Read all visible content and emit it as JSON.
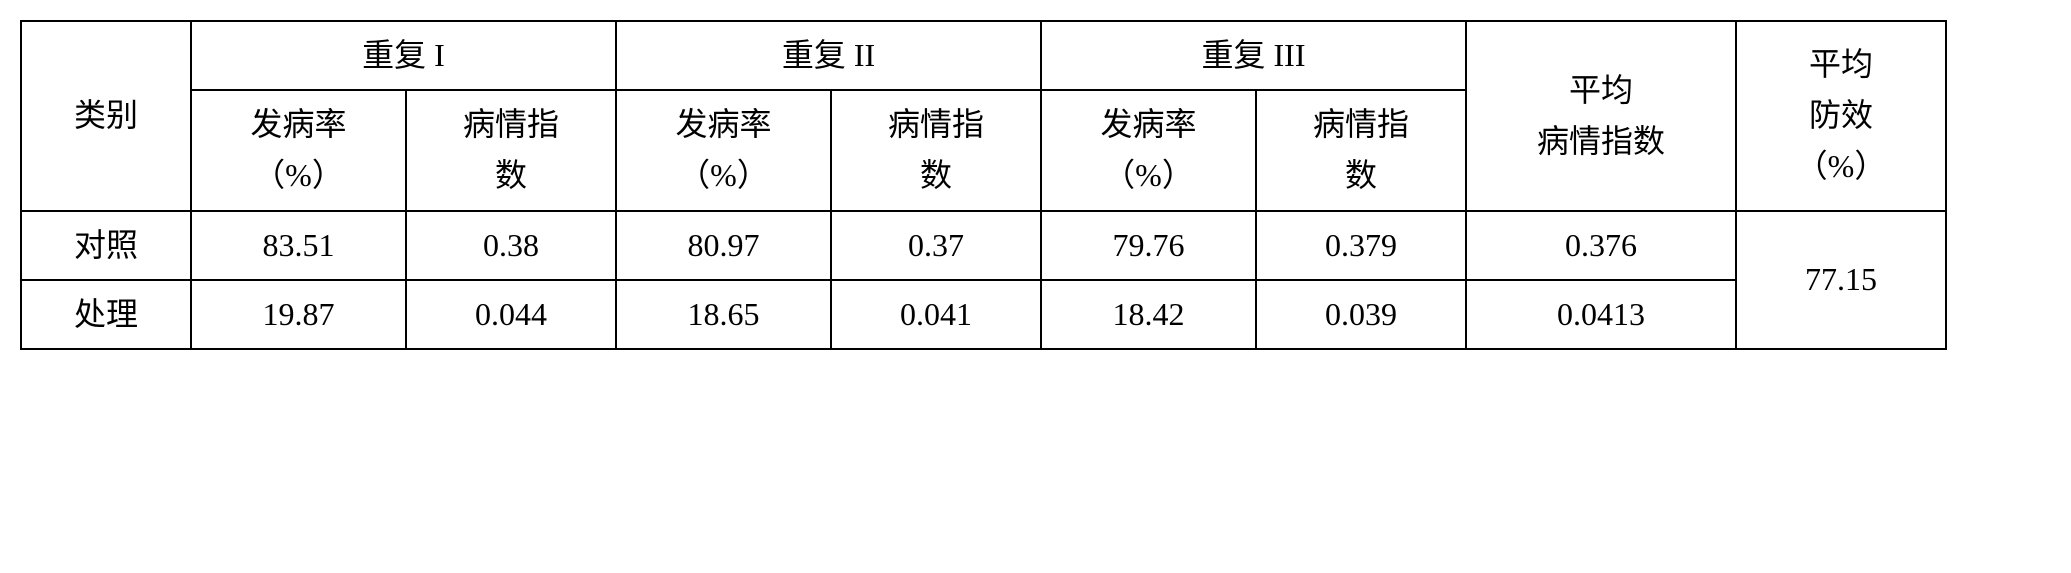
{
  "table": {
    "headers": {
      "category": "类别",
      "rep1": "重复 I",
      "rep2": "重复 II",
      "rep3": "重复 III",
      "rate": "发病率\n（%）",
      "index": "病情指\n数",
      "avg_index": "平均\n病情指数",
      "avg_eff": "平均\n防效\n（%）"
    },
    "rows": [
      {
        "label": "对照",
        "r1_rate": "83.51",
        "r1_idx": "0.38",
        "r2_rate": "80.97",
        "r2_idx": "0.37",
        "r3_rate": "79.76",
        "r3_idx": "0.379",
        "avg_idx": "0.376"
      },
      {
        "label": "处理",
        "r1_rate": "19.87",
        "r1_idx": "0.044",
        "r2_rate": "18.65",
        "r2_idx": "0.041",
        "r3_rate": "18.42",
        "r3_idx": "0.039",
        "avg_idx": "0.0413"
      }
    ],
    "avg_eff_value": "77.15"
  }
}
